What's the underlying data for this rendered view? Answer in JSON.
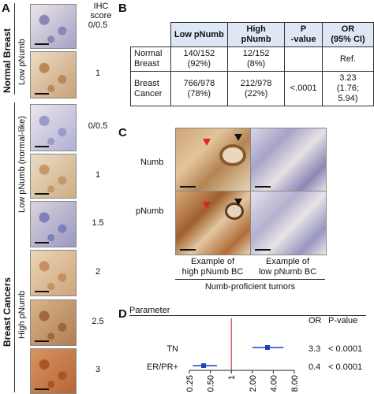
{
  "panels": {
    "a": {
      "letter": "A",
      "score_header": "IHC\nscore",
      "group_labels": {
        "normal": "Normal Breast",
        "cancer": "Breast Cancers",
        "low_normal": "Low pNumb",
        "low_cancer": "Low pNumb (normal-like)",
        "high_cancer": "High pNumb"
      },
      "tiles": [
        {
          "score": "0/0.5",
          "tone": "#ebe5e7",
          "stain": "#8b86b8"
        },
        {
          "score": "1",
          "tone": "#ecdcc4",
          "stain": "#b88a5a"
        },
        {
          "score": "0/0.5",
          "tone": "#e9e6ec",
          "stain": "#9a9bc9"
        },
        {
          "score": "1",
          "tone": "#eadcc4",
          "stain": "#c49a6c"
        },
        {
          "score": "1.5",
          "tone": "#dcd3db",
          "stain": "#7d7fb8"
        },
        {
          "score": "2",
          "tone": "#ead6b6",
          "stain": "#c49062"
        },
        {
          "score": "2.5",
          "tone": "#d8b48a",
          "stain": "#a0673c"
        },
        {
          "score": "3",
          "tone": "#d79462",
          "stain": "#a85524"
        }
      ]
    },
    "b": {
      "letter": "B",
      "headers": [
        "",
        "Low pNumb",
        "High pNumb",
        "P\n-value",
        "OR\n(95% CI)"
      ],
      "rows": [
        {
          "label": "Normal\nBreast",
          "low": "140/152\n(92%)",
          "high": "12/152\n(8%)",
          "p": "",
          "or": "Ref."
        },
        {
          "label": "Breast\nCancer",
          "low": "766/978\n(78%)",
          "high": "212/978\n(22%)",
          "p": "<.0001",
          "or": "3.23\n(1.76; 5.94)"
        }
      ]
    },
    "c": {
      "letter": "C",
      "row_labels": [
        "Numb",
        "pNumb"
      ],
      "captions": [
        "Example of\nhigh pNumb BC",
        "Example of\nlow pNumb BC"
      ],
      "footer": "Numb-proficient tumors"
    },
    "d": {
      "letter": "D",
      "col_param": "Parameter",
      "col_or": "OR",
      "col_p": "P-value",
      "reference_line_color": "#d23a4a",
      "marker_color": "#1f3fbf"
    }
  },
  "chart_data": {
    "type": "forest",
    "x_scale": "log",
    "xlim": [
      0.25,
      8.0
    ],
    "reference": 1,
    "tick_labels": [
      "0.25",
      "0.50",
      "1",
      "2.00",
      "4.00",
      "8.00"
    ],
    "ticks": [
      0.25,
      0.5,
      1,
      2,
      4,
      8
    ],
    "rows": [
      {
        "label": "TN",
        "or": 3.3,
        "ci": [
          2.0,
          5.6
        ],
        "or_text": "3.3",
        "p_text": "< 0.0001"
      },
      {
        "label": "ER/PR+",
        "or": 0.4,
        "ci": [
          0.28,
          0.62
        ],
        "or_text": "0.4",
        "p_text": "< 0.0001"
      }
    ]
  }
}
